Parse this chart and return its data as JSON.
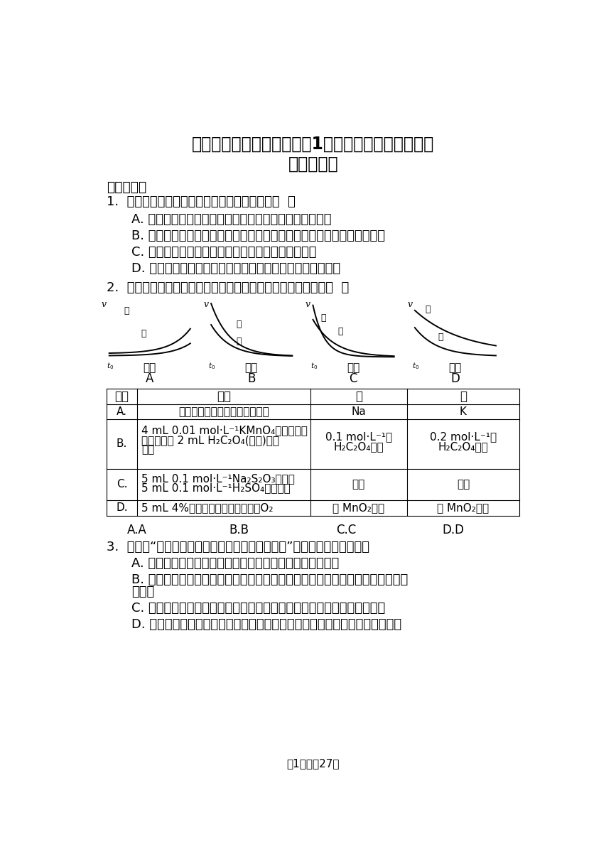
{
  "title_line1": "高中化学鲁科版选择性必修1第二章第三节化学反应的",
  "title_line2": "速率练习题",
  "bg_color": "#ffffff",
  "text_color": "#000000",
  "page_footer": "第1页，內27页",
  "section1": "一、单选题",
  "q1_stem": "1.  下列关于有效碰撞理论的说法一定正确的是（  ）",
  "q1_A": "A. 增大反应物浓度，活化分子百分数增大，反应速率加快",
  "q1_B": "B. 催化剑在化学反应过程中参与了反应，活化分子数增大，反应速率加快",
  "q1_C": "C. 升高温度，所有反应的活化能增大，反应速率加快",
  "q1_D": "D. 增大压强，所有反应的有效碰撞概率增大，反应速率加快",
  "q2_stem": "2.  下列表格中的各种情况，可以用对应选项中的图像表示的是（  ）",
  "q2_graph_labels": [
    "A",
    "B",
    "C",
    "D"
  ],
  "table_header_0": "选项",
  "table_header_1": "反应",
  "table_header_2": "甲",
  "table_header_3": "乙",
  "row_A_0": "A.",
  "row_A_1": "外形、大小相近的金属和水反应",
  "row_A_2": "Na",
  "row_A_3": "K",
  "row_B_0": "B.",
  "row_B_1a": "4 mL 0.01 mol·L⁻¹KMnO₄溶液分别和",
  "row_B_1b": "不同浓度的 2 mL H₂C₂O₄(草酸)溶液",
  "row_B_1c": "反应",
  "row_B_2a": "0.1 mol·L⁻¹的",
  "row_B_2b": "H₂C₂O₄溶液",
  "row_B_3a": "0.2 mol·L⁻¹的",
  "row_B_3b": "H₂C₂O₄溶液",
  "row_C_0": "C.",
  "row_C_1a": "5 mL 0.1 mol·L⁻¹Na₂S₂O₃溶液和",
  "row_C_1b": "5 mL 0.1 mol·L⁻¹H₂SO₄溶液反应",
  "row_C_2": "热水",
  "row_C_3": "冷水",
  "row_D_0": "D.",
  "row_D_1": "5 mL 4%的过氧化氢溶液分解放出O₂",
  "row_D_2": "无 MnO₂粉末",
  "row_D_3": "加 MnO₂粉末",
  "ans_AA": "A.A",
  "ans_BB": "B.B",
  "ans_CC": "C.C",
  "ans_DD": "D.D",
  "q3_stem": "3.  下列对“改变反应条件，导致化学反应速率改变”的原因描述不正确的是",
  "q3_A": "A. 增大反应物浓度，活化分子的百分数增加。反应速率加快",
  "q3_B1": "B. 对于气体反应来说，缩小容器体积，单位体积内活化分子的数目增多，反应速",
  "q3_B2": "率加快",
  "q3_C": "C. 升高温度，活化分子百分数提高，有效碰撞的几率提高，反应速率增大",
  "q3_D": "D. 催化剑通过改变反应的路径，使发生反应所需的活化能降低，反应速率增大"
}
